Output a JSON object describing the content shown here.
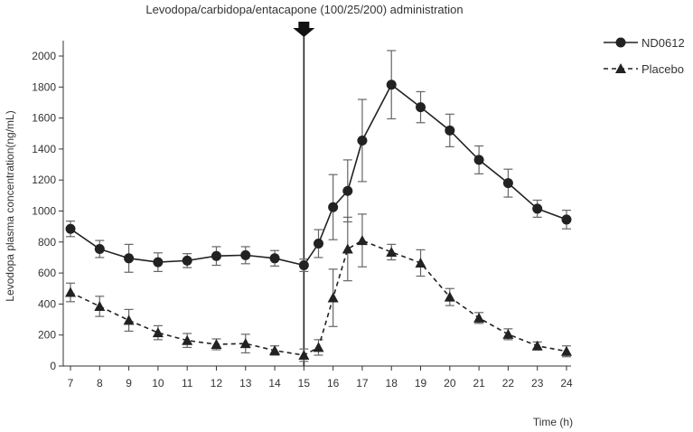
{
  "chart_data": {
    "type": "line",
    "annotation": "Levodopa/carbidopa/entacapone (100/25/200) administration",
    "annotation_x": 15,
    "xlabel": "Time (h)",
    "ylabel": "Levodopa plasma concentration(ng/mL)",
    "xlim": [
      7,
      24
    ],
    "ylim": [
      0,
      2000
    ],
    "x_ticks": [
      7,
      8,
      9,
      10,
      11,
      12,
      13,
      14,
      15,
      16,
      17,
      18,
      19,
      20,
      21,
      22,
      23,
      24
    ],
    "y_ticks": [
      0,
      200,
      400,
      600,
      800,
      1000,
      1200,
      1400,
      1600,
      1800,
      2000
    ],
    "grid": false,
    "legend_position": "top-right",
    "series": [
      {
        "name": "ND0612",
        "marker": "circle",
        "line_style": "solid",
        "x": [
          7,
          8,
          9,
          10,
          11,
          12,
          13,
          14,
          15,
          15.5,
          16,
          16.5,
          17,
          18,
          19,
          20,
          21,
          22,
          23,
          24
        ],
        "values": [
          885,
          755,
          695,
          670,
          680,
          710,
          715,
          695,
          650,
          790,
          1025,
          1130,
          1455,
          1815,
          1670,
          1520,
          1330,
          1180,
          1015,
          945
        ],
        "errors": [
          50,
          55,
          90,
          60,
          45,
          60,
          55,
          50,
          40,
          90,
          210,
          200,
          265,
          220,
          100,
          105,
          90,
          90,
          55,
          60
        ]
      },
      {
        "name": "Placebo",
        "marker": "triangle",
        "line_style": "dashed",
        "x": [
          7,
          8,
          9,
          10,
          11,
          12,
          13,
          14,
          15,
          15.5,
          16,
          16.5,
          17,
          18,
          19,
          20,
          21,
          22,
          23,
          24
        ],
        "values": [
          475,
          385,
          295,
          215,
          165,
          140,
          145,
          100,
          70,
          120,
          440,
          755,
          810,
          735,
          665,
          445,
          310,
          205,
          130,
          95
        ],
        "errors": [
          60,
          65,
          70,
          45,
          45,
          35,
          60,
          30,
          40,
          50,
          185,
          205,
          170,
          50,
          85,
          55,
          35,
          35,
          25,
          35
        ]
      }
    ]
  }
}
